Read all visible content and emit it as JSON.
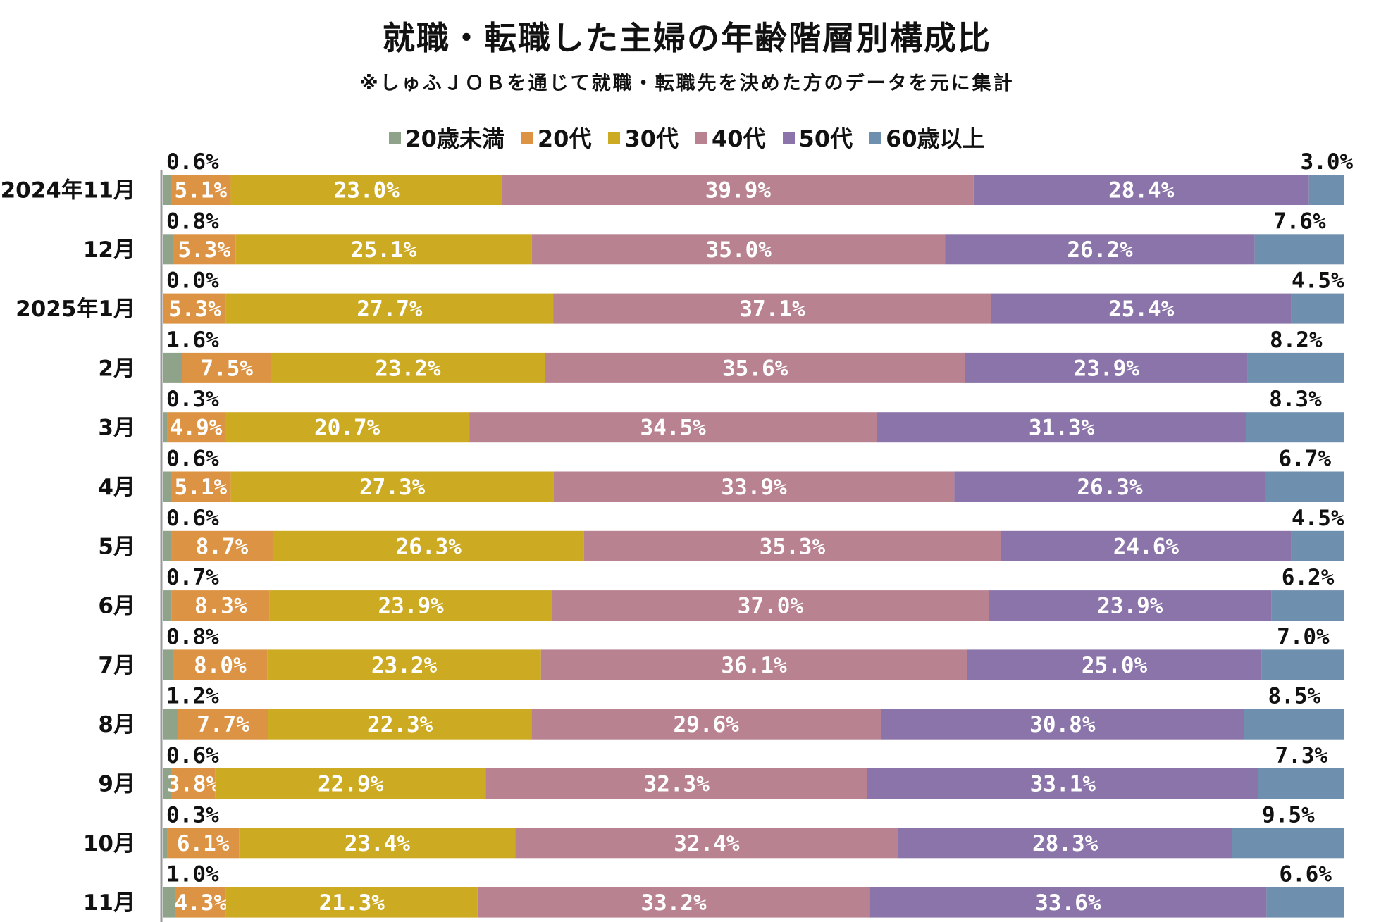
{
  "chart_data": {
    "type": "bar",
    "orientation": "horizontal",
    "stacked": true,
    "percent": true,
    "title": "就職・転職した主婦の年齢階層別構成比",
    "subtitle": "※しゅふＪＯＢを通じて就職・転職先を決めた方のデータを元に集計",
    "legend_position": "top",
    "xlim": [
      0,
      100
    ],
    "categories": [
      "2024年11月",
      "12月",
      "2025年1月",
      "2月",
      "3月",
      "4月",
      "5月",
      "6月",
      "7月",
      "8月",
      "9月",
      "10月",
      "11月"
    ],
    "series": [
      {
        "name": "20歳未満",
        "color": "#8fa38a",
        "values": [
          0.6,
          0.8,
          0.0,
          1.6,
          0.3,
          0.6,
          0.6,
          0.7,
          0.8,
          1.2,
          0.6,
          0.3,
          1.0
        ]
      },
      {
        "name": "20代",
        "color": "#dc9444",
        "values": [
          5.1,
          5.3,
          5.3,
          7.5,
          4.9,
          5.1,
          8.7,
          8.3,
          8.0,
          7.7,
          3.8,
          6.1,
          4.3
        ]
      },
      {
        "name": "30代",
        "color": "#ccaa22",
        "values": [
          23.0,
          25.1,
          27.7,
          23.2,
          20.7,
          27.3,
          26.3,
          23.9,
          23.2,
          22.3,
          22.9,
          23.4,
          21.3
        ]
      },
      {
        "name": "40代",
        "color": "#b98291",
        "values": [
          39.9,
          35.0,
          37.1,
          35.6,
          34.5,
          33.9,
          35.3,
          37.0,
          36.1,
          29.6,
          32.3,
          32.4,
          33.2
        ]
      },
      {
        "name": "50代",
        "color": "#8a74a9",
        "values": [
          28.4,
          26.2,
          25.4,
          23.9,
          31.3,
          26.3,
          24.6,
          23.9,
          25.0,
          30.8,
          33.1,
          28.3,
          33.6
        ]
      },
      {
        "name": "60歳以上",
        "color": "#6f8fae",
        "values": [
          3.0,
          7.6,
          4.5,
          8.2,
          8.3,
          6.7,
          4.5,
          6.2,
          7.0,
          8.5,
          7.3,
          9.5,
          6.6
        ]
      }
    ]
  }
}
